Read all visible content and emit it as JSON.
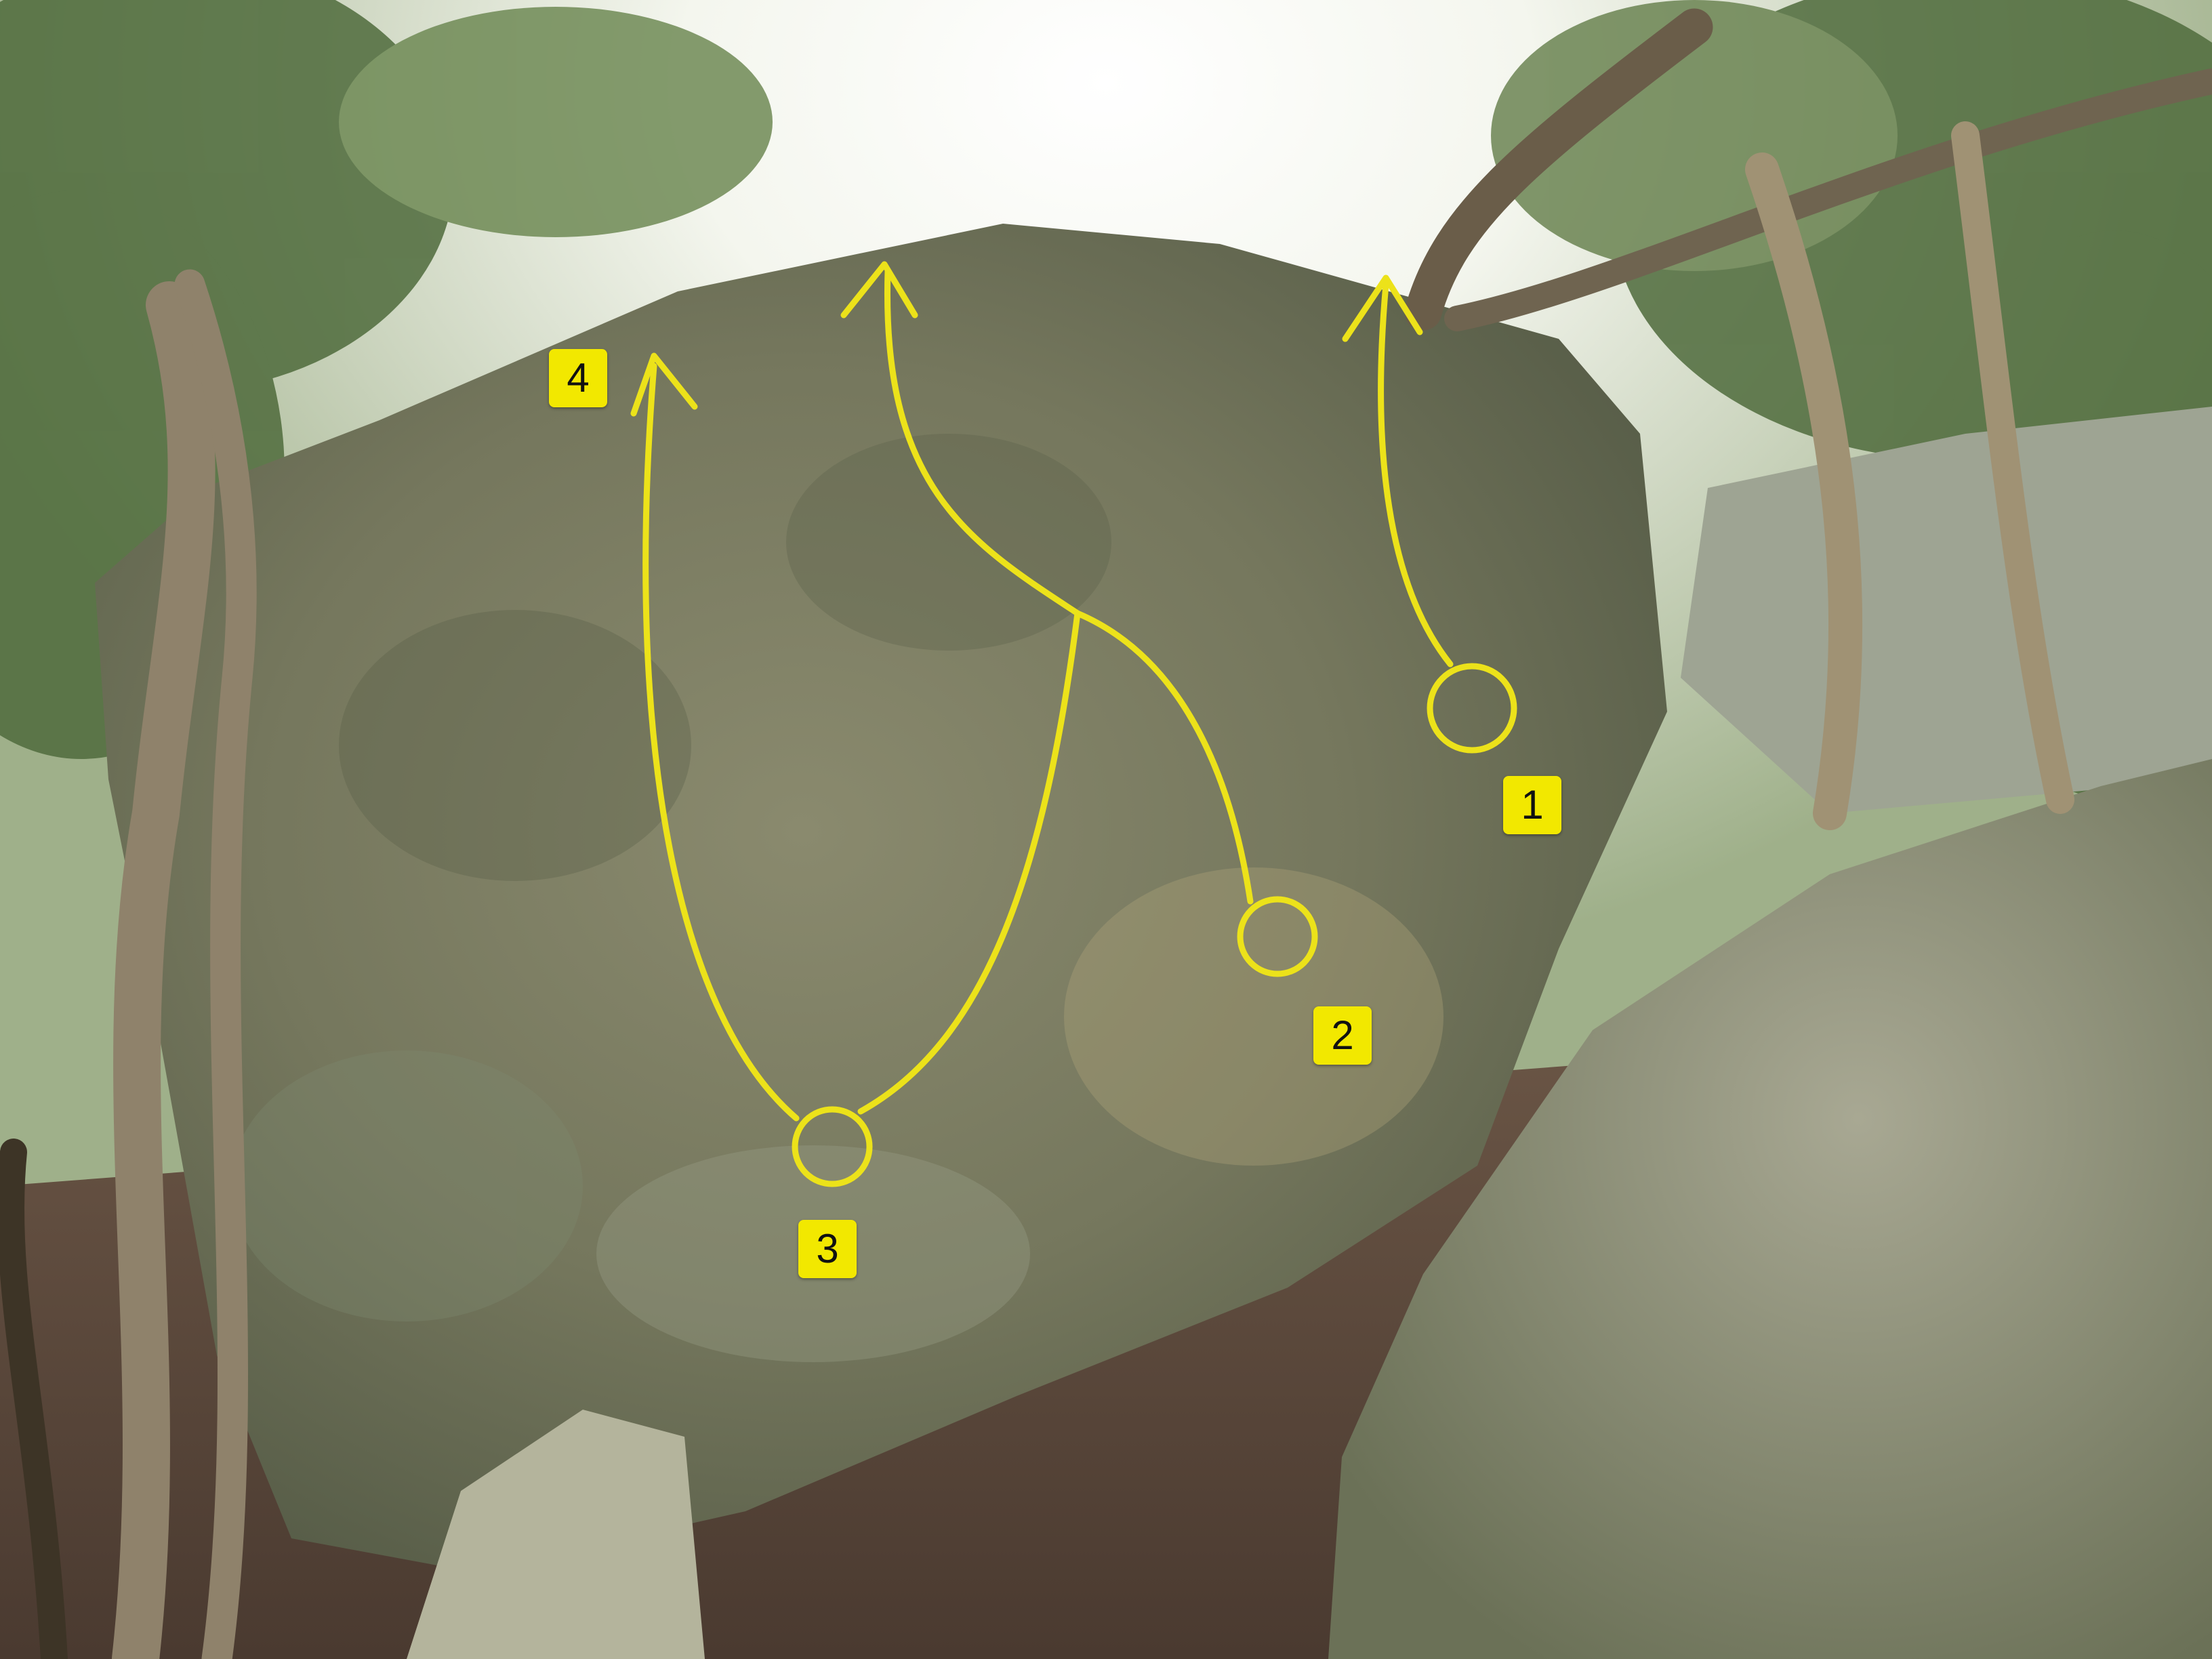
{
  "colors": {
    "route_line": "#ece21a",
    "label_bg": "#f2e800",
    "label_text": "#111111"
  },
  "routes": [
    {
      "number": "1"
    },
    {
      "number": "2"
    },
    {
      "number": "3"
    },
    {
      "number": "4"
    }
  ]
}
